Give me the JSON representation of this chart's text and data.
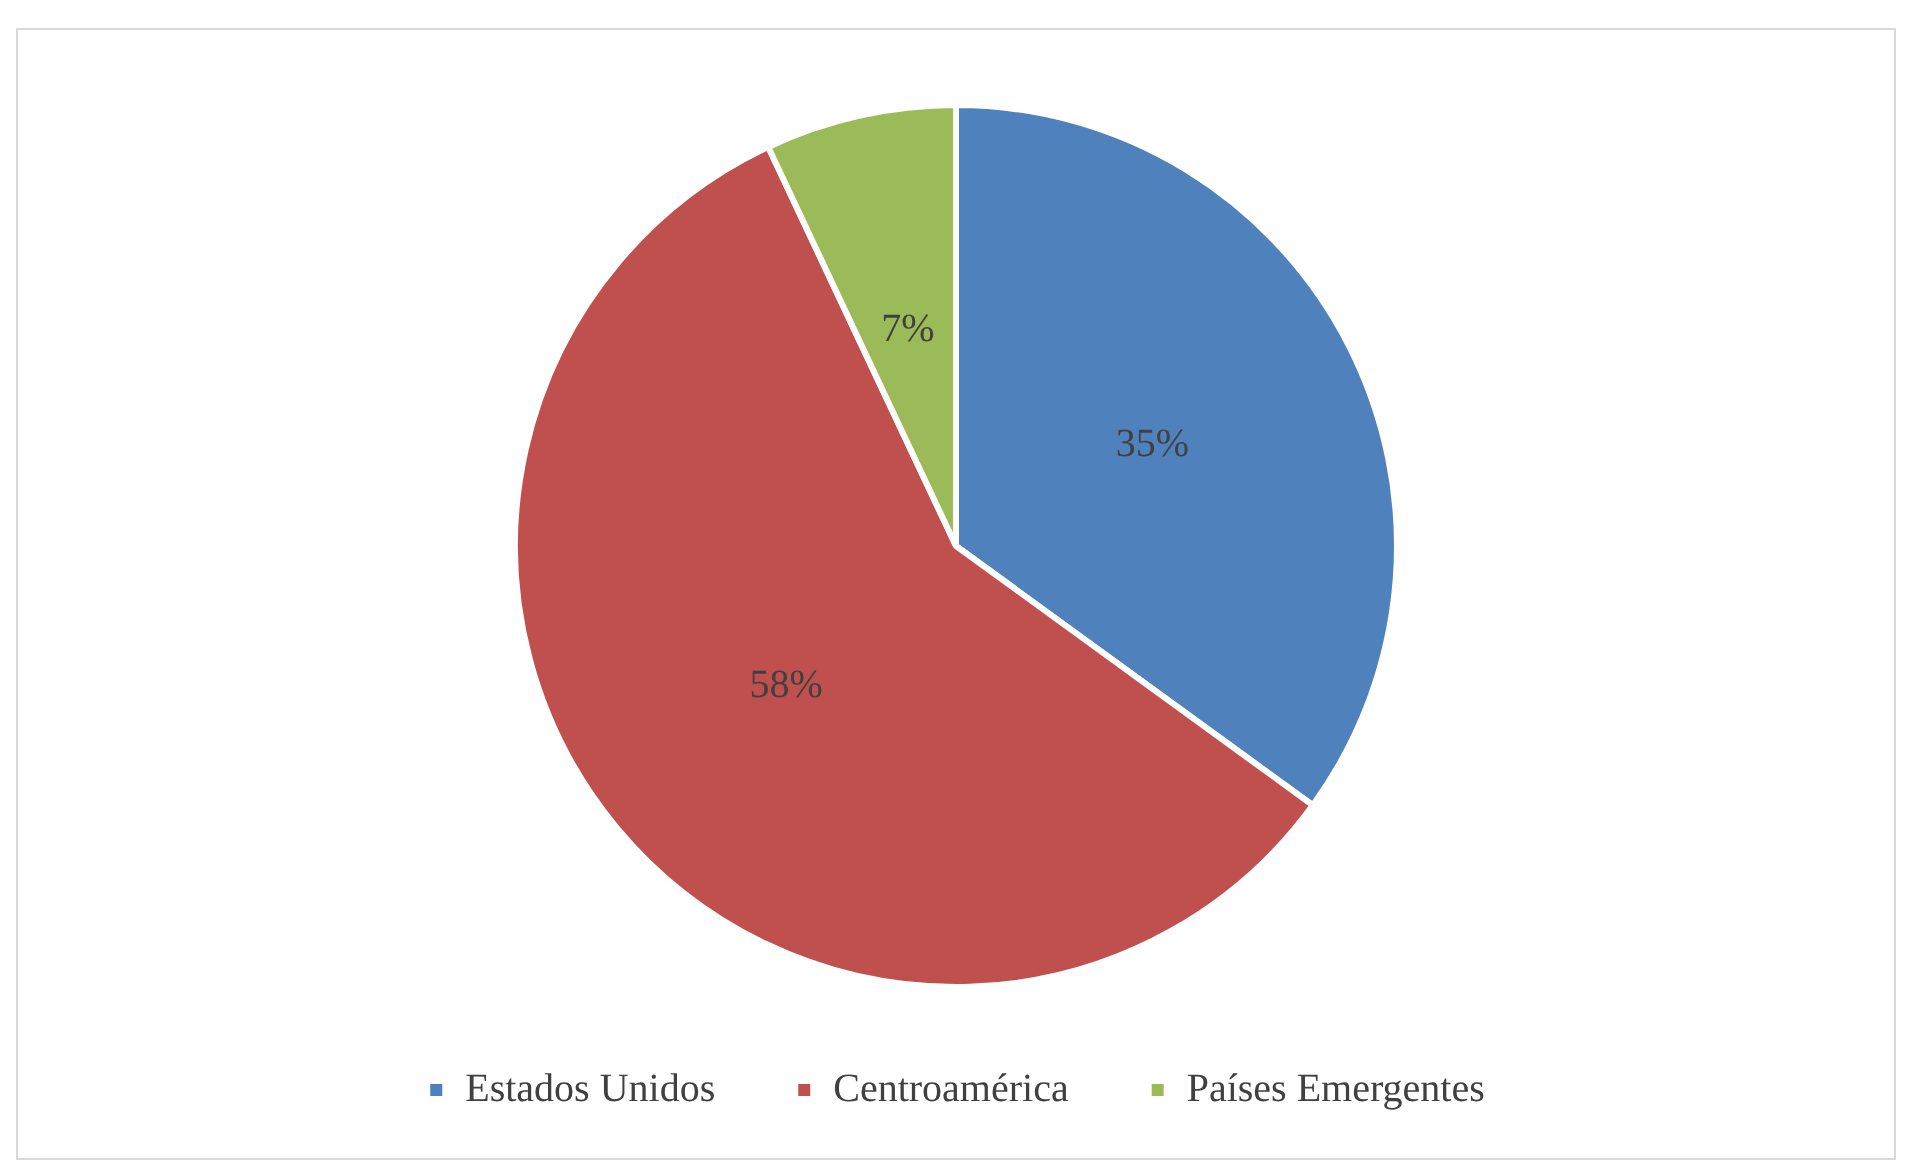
{
  "chart_data": {
    "type": "pie",
    "categories": [
      "Estados Unidos",
      "Centroamérica",
      "Países Emergentes"
    ],
    "values": [
      35,
      58,
      7
    ],
    "value_labels": [
      "35%",
      "58%",
      "7%"
    ],
    "colors": [
      "#4f81bd",
      "#c0504d",
      "#9bbb59"
    ],
    "legend": "bottom"
  }
}
